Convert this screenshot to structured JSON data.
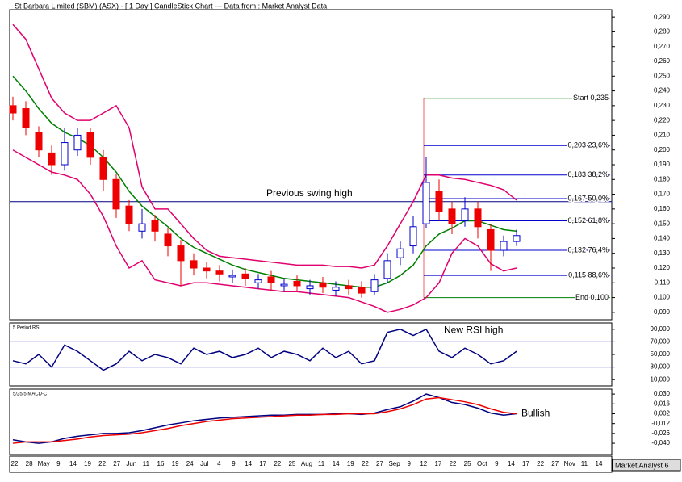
{
  "chart_data": [
    {
      "type": "candlestick",
      "title": "St Barbara Limited (SBM) (ASX) -  [ 1 Day ] CandleStick Chart --- Data from : Market Analyst Data",
      "open": [
        0.23,
        0.228,
        0.212,
        0.198,
        0.19,
        0.2,
        0.212,
        0.195,
        0.18,
        0.162,
        0.145,
        0.152,
        0.143,
        0.135,
        0.125,
        0.12,
        0.118,
        0.114,
        0.116,
        0.11,
        0.114,
        0.108,
        0.111,
        0.106,
        0.11,
        0.105,
        0.108,
        0.107,
        0.104,
        0.113,
        0.127,
        0.135,
        0.15,
        0.172,
        0.16,
        0.152,
        0.16,
        0.146,
        0.132,
        0.138
      ],
      "high": [
        0.236,
        0.233,
        0.216,
        0.203,
        0.215,
        0.215,
        0.215,
        0.2,
        0.184,
        0.166,
        0.16,
        0.156,
        0.147,
        0.139,
        0.13,
        0.124,
        0.122,
        0.119,
        0.12,
        0.116,
        0.118,
        0.113,
        0.115,
        0.112,
        0.114,
        0.111,
        0.112,
        0.111,
        0.116,
        0.13,
        0.138,
        0.155,
        0.195,
        0.18,
        0.165,
        0.168,
        0.165,
        0.15,
        0.142,
        0.146
      ],
      "low": [
        0.22,
        0.21,
        0.195,
        0.183,
        0.186,
        0.196,
        0.19,
        0.172,
        0.154,
        0.145,
        0.14,
        0.138,
        0.128,
        0.108,
        0.115,
        0.113,
        0.111,
        0.11,
        0.108,
        0.106,
        0.105,
        0.104,
        0.104,
        0.102,
        0.103,
        0.101,
        0.102,
        0.1,
        0.102,
        0.11,
        0.122,
        0.13,
        0.147,
        0.152,
        0.143,
        0.148,
        0.14,
        0.118,
        0.128,
        0.135
      ],
      "close": [
        0.225,
        0.215,
        0.2,
        0.19,
        0.205,
        0.21,
        0.195,
        0.18,
        0.16,
        0.15,
        0.15,
        0.145,
        0.135,
        0.125,
        0.12,
        0.118,
        0.116,
        0.115,
        0.113,
        0.112,
        0.11,
        0.109,
        0.108,
        0.108,
        0.107,
        0.107,
        0.106,
        0.103,
        0.112,
        0.125,
        0.133,
        0.148,
        0.178,
        0.158,
        0.15,
        0.16,
        0.148,
        0.132,
        0.138,
        0.142
      ],
      "up_color": "#0000cc",
      "down_color": "#ee0000",
      "series": [
        {
          "color": "#e0006e",
          "values": [
            0.285,
            0.275,
            0.255,
            0.235,
            0.225,
            0.22,
            0.22,
            0.225,
            0.23,
            0.215,
            0.175,
            0.16,
            0.16,
            0.15,
            0.14,
            0.132,
            0.128,
            0.127,
            0.126,
            0.125,
            0.124,
            0.123,
            0.122,
            0.122,
            0.122,
            0.121,
            0.121,
            0.12,
            0.122,
            0.135,
            0.15,
            0.165,
            0.183,
            0.183,
            0.181,
            0.18,
            0.178,
            0.176,
            0.173,
            0.166
          ]
        },
        {
          "color": "#008000",
          "values": [
            0.25,
            0.24,
            0.228,
            0.218,
            0.212,
            0.208,
            0.203,
            0.195,
            0.185,
            0.172,
            0.162,
            0.155,
            0.148,
            0.14,
            0.134,
            0.13,
            0.126,
            0.122,
            0.119,
            0.117,
            0.115,
            0.113,
            0.112,
            0.111,
            0.11,
            0.109,
            0.108,
            0.107,
            0.107,
            0.11,
            0.115,
            0.122,
            0.135,
            0.143,
            0.147,
            0.152,
            0.152,
            0.149,
            0.146,
            0.145
          ]
        },
        {
          "color": "#e0006e",
          "values": [
            0.2,
            0.195,
            0.19,
            0.185,
            0.183,
            0.18,
            0.17,
            0.155,
            0.135,
            0.12,
            0.125,
            0.112,
            0.11,
            0.108,
            0.11,
            0.11,
            0.109,
            0.108,
            0.107,
            0.106,
            0.105,
            0.104,
            0.104,
            0.103,
            0.102,
            0.101,
            0.1,
            0.097,
            0.094,
            0.09,
            0.092,
            0.095,
            0.1,
            0.11,
            0.13,
            0.14,
            0.135,
            0.123,
            0.118,
            0.12
          ]
        }
      ],
      "swing_high": {
        "value": 0.165,
        "label": "Previous swing high"
      },
      "fib_levels": [
        {
          "value": 0.235,
          "label": "Start 0,235",
          "color": "#008000"
        },
        {
          "value": 0.203,
          "label": "0,203 23,6%",
          "color": "#0000cc"
        },
        {
          "value": 0.183,
          "label": "0,183 38,2%",
          "color": "#0000cc"
        },
        {
          "value": 0.167,
          "label": "0,167 50,0%",
          "color": "#0000cc"
        },
        {
          "value": 0.152,
          "label": "0,152 61,8%",
          "color": "#0000cc"
        },
        {
          "value": 0.132,
          "label": "0,132 76,4%",
          "color": "#0000cc"
        },
        {
          "value": 0.115,
          "label": "0,115 88,6%",
          "color": "#0000cc"
        },
        {
          "value": 0.1,
          "label": "End 0,100",
          "color": "#008000"
        }
      ],
      "ylim": [
        0.085,
        0.295
      ],
      "yticks": [
        {
          "value": 0.29,
          "label": "0,290"
        },
        {
          "value": 0.28,
          "label": "0,280"
        },
        {
          "value": 0.27,
          "label": "0,270"
        },
        {
          "value": 0.26,
          "label": "0,260"
        },
        {
          "value": 0.25,
          "label": "0,250"
        },
        {
          "value": 0.24,
          "label": "0,240"
        },
        {
          "value": 0.23,
          "label": "0,230"
        },
        {
          "value": 0.22,
          "label": "0,220"
        },
        {
          "value": 0.21,
          "label": "0,210"
        },
        {
          "value": 0.2,
          "label": "0,200"
        },
        {
          "value": 0.19,
          "label": "0,190"
        },
        {
          "value": 0.18,
          "label": "0,180"
        },
        {
          "value": 0.17,
          "label": "0,170"
        },
        {
          "value": 0.16,
          "label": "0,160"
        },
        {
          "value": 0.15,
          "label": "0,150"
        },
        {
          "value": 0.14,
          "label": "0,140"
        },
        {
          "value": 0.13,
          "label": "0,130"
        },
        {
          "value": 0.12,
          "label": "0,120"
        },
        {
          "value": 0.11,
          "label": "0,110"
        },
        {
          "value": 0.1,
          "label": "0,100"
        },
        {
          "value": 0.09,
          "label": "0,090"
        }
      ],
      "x_labels": [
        "22",
        "28",
        "May",
        "9",
        "14",
        "19",
        "22",
        "27",
        "Jun",
        "11",
        "16",
        "19",
        "24",
        "Jul",
        "4",
        "9",
        "14",
        "17",
        "22",
        "25",
        "Aug",
        "11",
        "14",
        "19",
        "22",
        "27",
        "Sep",
        "9",
        "12",
        "17",
        "22",
        "25",
        "Oct",
        "9",
        "14",
        "17",
        "22",
        "27",
        "Nov",
        "11",
        "14"
      ],
      "footer": "Market Analyst 6"
    },
    {
      "type": "line",
      "title": "5 Period RSI",
      "series": [
        {
          "color": "#000080",
          "values": [
            40,
            35,
            50,
            30,
            65,
            55,
            40,
            25,
            35,
            55,
            40,
            50,
            45,
            35,
            60,
            50,
            55,
            45,
            50,
            60,
            45,
            55,
            50,
            40,
            60,
            45,
            55,
            35,
            40,
            85,
            90,
            80,
            90,
            55,
            45,
            60,
            50,
            35,
            40,
            55
          ]
        }
      ],
      "hlines": [
        70,
        30
      ],
      "hline_color": "#0000cc",
      "annotation": {
        "text": "New RSI high",
        "index": 33,
        "value": 88
      },
      "ylim": [
        0,
        100
      ],
      "yticks": [
        {
          "value": 90,
          "label": "90,000"
        },
        {
          "value": 70,
          "label": "70,000"
        },
        {
          "value": 50,
          "label": "50,000"
        },
        {
          "value": 30,
          "label": "30,000"
        },
        {
          "value": 10,
          "label": "10,000"
        }
      ]
    },
    {
      "type": "line",
      "title": "5/25/5 MACD-C",
      "series": [
        {
          "color": "#000080",
          "values": [
            -0.035,
            -0.038,
            -0.04,
            -0.038,
            -0.033,
            -0.03,
            -0.028,
            -0.026,
            -0.026,
            -0.025,
            -0.022,
            -0.018,
            -0.014,
            -0.011,
            -0.008,
            -0.006,
            -0.004,
            -0.003,
            -0.002,
            -0.001,
            0,
            0,
            0.001,
            0.001,
            0.001,
            0.002,
            0.002,
            0.001,
            0.003,
            0.008,
            0.012,
            0.02,
            0.03,
            0.025,
            0.018,
            0.015,
            0.01,
            0.003,
            0.0,
            0.002
          ]
        },
        {
          "color": "#ee0000",
          "values": [
            -0.04,
            -0.038,
            -0.038,
            -0.038,
            -0.036,
            -0.034,
            -0.031,
            -0.029,
            -0.028,
            -0.027,
            -0.025,
            -0.022,
            -0.019,
            -0.015,
            -0.012,
            -0.009,
            -0.007,
            -0.005,
            -0.004,
            -0.003,
            -0.002,
            -0.001,
            0,
            0,
            0.001,
            0.001,
            0.002,
            0.002,
            0.002,
            0.005,
            0.009,
            0.015,
            0.023,
            0.025,
            0.022,
            0.019,
            0.015,
            0.009,
            0.004,
            0.002
          ]
        }
      ],
      "annotation": {
        "text": "Bullish",
        "index": 39,
        "value": 0.002
      },
      "ylim": [
        -0.056,
        0.037
      ],
      "yticks": [
        {
          "value": 0.03,
          "label": "0,030"
        },
        {
          "value": 0.016,
          "label": "0,016"
        },
        {
          "value": 0.002,
          "label": "0,002"
        },
        {
          "value": -0.012,
          "label": "-0,012"
        },
        {
          "value": -0.026,
          "label": "-0,026"
        },
        {
          "value": -0.04,
          "label": "-0,040"
        }
      ]
    }
  ]
}
